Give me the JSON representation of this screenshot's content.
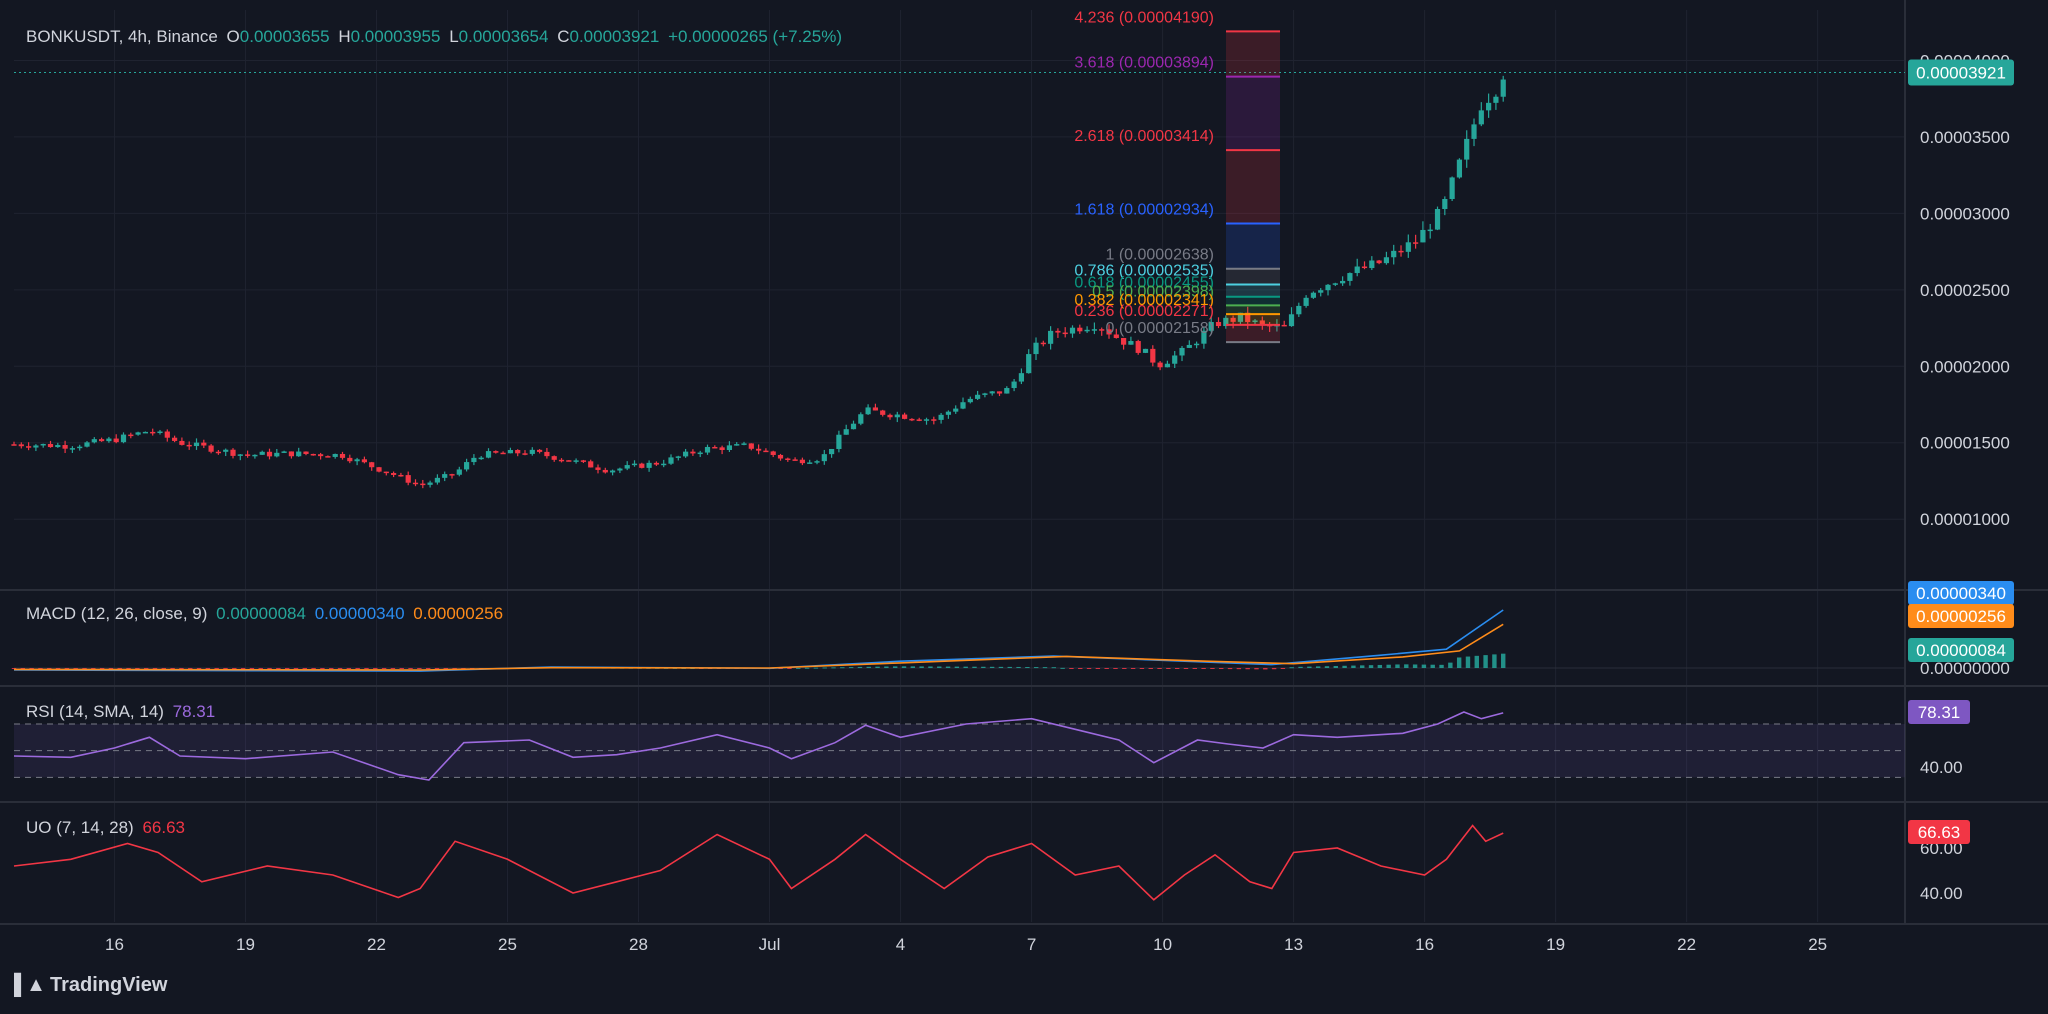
{
  "header": {
    "symbol": "BONKUSDT, 4h, Binance",
    "o_label": "O",
    "o": "0.00003655",
    "h_label": "H",
    "h": "0.00003955",
    "l_label": "L",
    "l": "0.00003654",
    "c_label": "C",
    "c": "0.00003921",
    "change": "+0.00000265 (+7.25%)"
  },
  "colors": {
    "bg": "#131722",
    "grid": "#1f2330",
    "up": "#26a69a",
    "down": "#f23645",
    "macd": "#2a8df0",
    "signal": "#ff8c1a",
    "rsi": "#9c6ade",
    "uo": "#f23645"
  },
  "x_axis": {
    "ticks": [
      {
        "label": "16",
        "day": 16
      },
      {
        "label": "19",
        "day": 19
      },
      {
        "label": "22",
        "day": 22
      },
      {
        "label": "25",
        "day": 25
      },
      {
        "label": "28",
        "day": 28
      },
      {
        "label": "Jul",
        "day": 31
      },
      {
        "label": "4",
        "day": 34
      },
      {
        "label": "7",
        "day": 37
      },
      {
        "label": "10",
        "day": 40
      },
      {
        "label": "13",
        "day": 43
      },
      {
        "label": "16",
        "day": 46
      },
      {
        "label": "19",
        "day": 49
      },
      {
        "label": "22",
        "day": 52
      },
      {
        "label": "25",
        "day": 55
      }
    ]
  },
  "price_axis": {
    "ticks": [
      "0.00001000",
      "0.00001500",
      "0.00002000",
      "0.00002500",
      "0.00003000",
      "0.00003500",
      "0.00004000"
    ],
    "current": "0.00003921"
  },
  "fib": {
    "levels": [
      {
        "label": "4.236 (0.00004190)",
        "value": 4.19e-05,
        "color": "#f23645"
      },
      {
        "label": "3.618 (0.00003894)",
        "value": 3.894e-05,
        "color": "#9c27b0"
      },
      {
        "label": "2.618 (0.00003414)",
        "value": 3.414e-05,
        "color": "#f23645"
      },
      {
        "label": "1.618 (0.00002934)",
        "value": 2.934e-05,
        "color": "#2962ff"
      },
      {
        "label": "1 (0.00002638)",
        "value": 2.638e-05,
        "color": "#787b86"
      },
      {
        "label": "0.786 (0.00002535)",
        "value": 2.535e-05,
        "color": "#4dd0e1"
      },
      {
        "label": "0.618 (0.00002455)",
        "value": 2.455e-05,
        "color": "#089981"
      },
      {
        "label": "0.5 (0.00002398)",
        "value": 2.398e-05,
        "color": "#4caf50"
      },
      {
        "label": "0.382 (0.00002341)",
        "value": 2.341e-05,
        "color": "#ff9800"
      },
      {
        "label": "0.236 (0.00002271)",
        "value": 2.271e-05,
        "color": "#f23645"
      },
      {
        "label": "0 (0.00002158)",
        "value": 2.158e-05,
        "color": "#787b86"
      }
    ]
  },
  "macd": {
    "label": "MACD (12, 26, close, 9)",
    "hist": "0.00000084",
    "macd": "0.00000340",
    "signal": "0.00000256",
    "axis_ticks": [
      "0.00000000"
    ],
    "badges": [
      "0.00000340",
      "0.00000256",
      "0.00000084"
    ]
  },
  "rsi": {
    "label": "RSI (14, SMA, 14)",
    "value": "78.31",
    "axis_ticks": [
      "40.00"
    ],
    "badge": "78.31",
    "bands": [
      70,
      50,
      30
    ]
  },
  "uo": {
    "label": "UO (7, 14, 28)",
    "value": "66.63",
    "axis_ticks": [
      "60.00",
      "40.00"
    ],
    "badge": "66.63"
  },
  "brand": {
    "name": "TradingView"
  },
  "chart_data": {
    "type": "candlestick",
    "title": "BONKUSDT, 4h, Binance",
    "x_range_days": [
      13.7,
      57.0
    ],
    "y_range": [
      5.5e-06,
      4.33e-05
    ],
    "price_path": [
      [
        13.7,
        1.49e-05
      ],
      [
        15.0,
        1.48e-05
      ],
      [
        16.0,
        1.52e-05
      ],
      [
        16.8,
        1.58e-05
      ],
      [
        17.5,
        1.5e-05
      ],
      [
        19.0,
        1.42e-05
      ],
      [
        20.0,
        1.43e-05
      ],
      [
        21.2,
        1.42e-05
      ],
      [
        22.5,
        1.28e-05
      ],
      [
        23.0,
        1.22e-05
      ],
      [
        23.8,
        1.3e-05
      ],
      [
        24.3,
        1.42e-05
      ],
      [
        25.5,
        1.44e-05
      ],
      [
        26.5,
        1.38e-05
      ],
      [
        27.3,
        1.32e-05
      ],
      [
        28.5,
        1.37e-05
      ],
      [
        29.5,
        1.46e-05
      ],
      [
        30.5,
        1.48e-05
      ],
      [
        31.5,
        1.38e-05
      ],
      [
        32.2,
        1.4e-05
      ],
      [
        32.8,
        1.6e-05
      ],
      [
        33.2,
        1.71e-05
      ],
      [
        34.0,
        1.68e-05
      ],
      [
        34.8,
        1.65e-05
      ],
      [
        35.5,
        1.78e-05
      ],
      [
        36.5,
        1.85e-05
      ],
      [
        37.0,
        2.1e-05
      ],
      [
        37.5,
        2.22e-05
      ],
      [
        38.5,
        2.28e-05
      ],
      [
        39.0,
        2.18e-05
      ],
      [
        39.5,
        2.11e-05
      ],
      [
        39.9,
        2.01e-05
      ],
      [
        40.5,
        2.1e-05
      ],
      [
        41.2,
        2.28e-05
      ],
      [
        41.8,
        2.32e-05
      ],
      [
        42.3,
        2.26e-05
      ],
      [
        42.8,
        2.25e-05
      ],
      [
        43.3,
        2.48e-05
      ],
      [
        44.2,
        2.6e-05
      ],
      [
        45.0,
        2.68e-05
      ],
      [
        45.8,
        2.82e-05
      ],
      [
        46.4,
        3.02e-05
      ],
      [
        46.9,
        3.4e-05
      ],
      [
        47.3,
        3.72e-05
      ],
      [
        47.6,
        3.8e-05
      ],
      [
        47.8,
        3.92e-05
      ]
    ],
    "macd_path": [
      [
        13.7,
        -1.2e-07
      ],
      [
        23.0,
        -1.8e-07
      ],
      [
        26.0,
        6e-08
      ],
      [
        31.0,
        -2e-08
      ],
      [
        34.0,
        4e-07
      ],
      [
        37.5,
        7e-07
      ],
      [
        40.5,
        4e-07
      ],
      [
        42.5,
        2e-07
      ],
      [
        45.0,
        7.5e-07
      ],
      [
        46.5,
        1.1e-06
      ],
      [
        47.8,
        3.4e-06
      ]
    ],
    "signal_path": [
      [
        13.7,
        -8e-08
      ],
      [
        23.0,
        -1.2e-07
      ],
      [
        26.0,
        2e-08
      ],
      [
        31.0,
        0.0
      ],
      [
        34.0,
        3e-07
      ],
      [
        37.8,
        6.8e-07
      ],
      [
        41.0,
        4e-07
      ],
      [
        43.0,
        2.5e-07
      ],
      [
        45.5,
        6.5e-07
      ],
      [
        46.8,
        1e-06
      ],
      [
        47.8,
        2.56e-06
      ]
    ],
    "rsi_path": [
      [
        13.7,
        46
      ],
      [
        15.0,
        45
      ],
      [
        16.0,
        52
      ],
      [
        16.8,
        60
      ],
      [
        17.5,
        46
      ],
      [
        19.0,
        44
      ],
      [
        21.0,
        49
      ],
      [
        22.5,
        32
      ],
      [
        23.2,
        28
      ],
      [
        24.0,
        56
      ],
      [
        25.5,
        58
      ],
      [
        26.5,
        45
      ],
      [
        27.5,
        47
      ],
      [
        28.5,
        52
      ],
      [
        29.8,
        62
      ],
      [
        31.0,
        52
      ],
      [
        31.5,
        44
      ],
      [
        32.5,
        56
      ],
      [
        33.2,
        69
      ],
      [
        34.0,
        60
      ],
      [
        35.5,
        70
      ],
      [
        37.0,
        74
      ],
      [
        38.0,
        66
      ],
      [
        39.0,
        58
      ],
      [
        39.8,
        41
      ],
      [
        40.8,
        58
      ],
      [
        41.5,
        55
      ],
      [
        42.3,
        52
      ],
      [
        43.0,
        62
      ],
      [
        44.0,
        60
      ],
      [
        45.5,
        63
      ],
      [
        46.3,
        70
      ],
      [
        46.9,
        79
      ],
      [
        47.3,
        74
      ],
      [
        47.8,
        78.31
      ]
    ],
    "uo_path": [
      [
        13.7,
        52
      ],
      [
        15.0,
        55
      ],
      [
        16.3,
        62
      ],
      [
        17.0,
        58
      ],
      [
        18.0,
        45
      ],
      [
        19.5,
        52
      ],
      [
        21.0,
        48
      ],
      [
        22.5,
        38
      ],
      [
        23.0,
        42
      ],
      [
        23.8,
        63
      ],
      [
        25.0,
        55
      ],
      [
        26.5,
        40
      ],
      [
        27.5,
        45
      ],
      [
        28.5,
        50
      ],
      [
        29.8,
        66
      ],
      [
        31.0,
        55
      ],
      [
        31.5,
        42
      ],
      [
        32.5,
        55
      ],
      [
        33.2,
        66
      ],
      [
        34.0,
        55
      ],
      [
        35.0,
        42
      ],
      [
        36.0,
        56
      ],
      [
        37.0,
        62
      ],
      [
        38.0,
        48
      ],
      [
        39.0,
        52
      ],
      [
        39.8,
        37
      ],
      [
        40.5,
        48
      ],
      [
        41.2,
        57
      ],
      [
        42.0,
        45
      ],
      [
        42.5,
        42
      ],
      [
        43.0,
        58
      ],
      [
        44.0,
        60
      ],
      [
        45.0,
        52
      ],
      [
        46.0,
        48
      ],
      [
        46.5,
        55
      ],
      [
        47.1,
        70
      ],
      [
        47.4,
        63
      ],
      [
        47.8,
        66.63
      ]
    ]
  }
}
